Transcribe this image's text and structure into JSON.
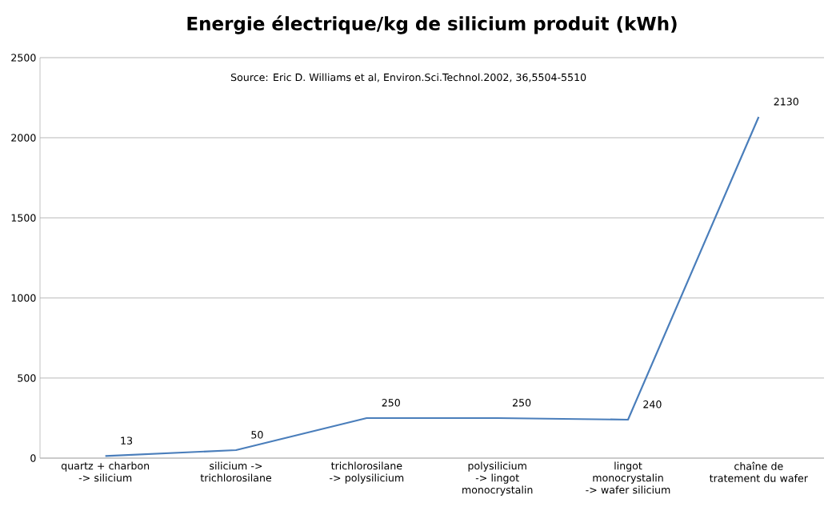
{
  "chart_data": {
    "type": "line",
    "title": "Energie électrique/kg de silicium produit (kWh)",
    "categories": [
      "quartz + charbon -> silicium",
      "silicium -> trichlorosilane",
      "trichlorosilane -> polysilicium",
      "polysilicium -> lingot monocrystalin",
      "lingot monocrystalin -> wafer silicium",
      "chaîne de tratement du wafer"
    ],
    "values": [
      13,
      50,
      250,
      250,
      240,
      2130
    ],
    "color": "#4a7ebb",
    "ylim": [
      0,
      2500
    ],
    "yticks": [
      0,
      500,
      1000,
      1500,
      2000,
      2500
    ],
    "grid": "y",
    "data_labels": true,
    "marker": "none",
    "line_style": "solid",
    "annotations": [
      "Source: Eric D. Williams et al, Environ.Sci.Technol.2002, 36,5504-5510"
    ]
  }
}
